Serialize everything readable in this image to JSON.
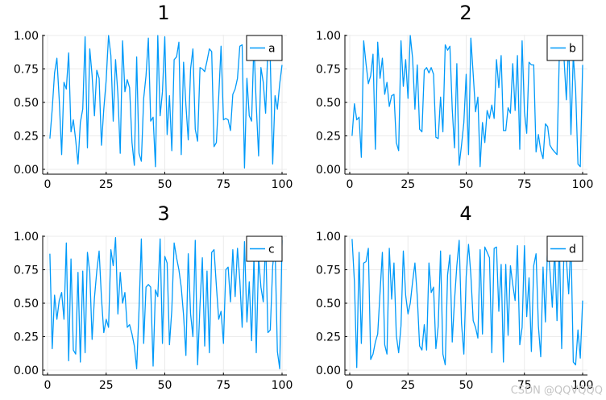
{
  "chart_data": [
    {
      "type": "line",
      "title": "1",
      "legend": "a",
      "legend_position": "top-right",
      "color": "#009af9",
      "xlim": [
        0,
        100
      ],
      "ylim": [
        0,
        1
      ],
      "xticks": [
        "0",
        "25",
        "50",
        "75",
        "100"
      ],
      "yticks": [
        "0.00",
        "0.25",
        "0.50",
        "0.75",
        "1.00"
      ],
      "x": [
        1,
        2,
        3,
        4,
        5,
        6,
        7,
        8,
        9,
        10,
        11,
        12,
        13,
        14,
        15,
        16,
        17,
        18,
        19,
        20,
        21,
        22,
        23,
        24,
        25,
        26,
        27,
        28,
        29,
        30,
        31,
        32,
        33,
        34,
        35,
        36,
        37,
        38,
        39,
        40,
        41,
        42,
        43,
        44,
        45,
        46,
        47,
        48,
        49,
        50,
        51,
        52,
        53,
        54,
        55,
        56,
        57,
        58,
        59,
        60,
        61,
        62,
        63,
        64,
        65,
        66,
        67,
        68,
        69,
        70,
        71,
        72,
        73,
        74,
        75,
        76,
        77,
        78,
        79,
        80,
        81,
        82,
        83,
        84,
        85,
        86,
        87,
        88,
        89,
        90,
        91,
        92,
        93,
        94,
        95,
        96,
        97,
        98,
        99,
        100
      ],
      "y": [
        0.23,
        0.45,
        0.72,
        0.83,
        0.52,
        0.11,
        0.65,
        0.6,
        0.87,
        0.28,
        0.37,
        0.22,
        0.04,
        0.35,
        0.45,
        0.99,
        0.16,
        0.9,
        0.7,
        0.4,
        0.74,
        0.68,
        0.18,
        0.45,
        0.67,
        1.0,
        0.85,
        0.36,
        0.82,
        0.56,
        0.12,
        0.96,
        0.58,
        0.67,
        0.61,
        0.2,
        0.03,
        0.84,
        0.12,
        0.06,
        0.53,
        0.7,
        0.98,
        0.36,
        0.39,
        0.02,
        1.0,
        0.4,
        0.58,
        0.99,
        0.26,
        0.55,
        0.14,
        0.82,
        0.84,
        0.95,
        0.11,
        0.8,
        0.48,
        0.22,
        0.75,
        0.9,
        0.3,
        0.21,
        0.76,
        0.75,
        0.73,
        0.81,
        0.9,
        0.88,
        0.17,
        0.2,
        0.54,
        0.92,
        0.37,
        0.38,
        0.37,
        0.29,
        0.56,
        0.6,
        0.68,
        0.92,
        0.93,
        0.01,
        0.68,
        0.4,
        0.36,
        0.94,
        0.48,
        0.1,
        0.76,
        0.65,
        0.42,
        0.92,
        0.82,
        0.04,
        0.55,
        0.45,
        0.64,
        0.78
      ]
    },
    {
      "type": "line",
      "title": "2",
      "legend": "b",
      "legend_position": "top-right",
      "color": "#009af9",
      "xlim": [
        0,
        100
      ],
      "ylim": [
        0,
        1
      ],
      "xticks": [
        "0",
        "25",
        "50",
        "75",
        "100"
      ],
      "yticks": [
        "0.00",
        "0.25",
        "0.50",
        "0.75",
        "1.00"
      ],
      "x": [
        1,
        2,
        3,
        4,
        5,
        6,
        7,
        8,
        9,
        10,
        11,
        12,
        13,
        14,
        15,
        16,
        17,
        18,
        19,
        20,
        21,
        22,
        23,
        24,
        25,
        26,
        27,
        28,
        29,
        30,
        31,
        32,
        33,
        34,
        35,
        36,
        37,
        38,
        39,
        40,
        41,
        42,
        43,
        44,
        45,
        46,
        47,
        48,
        49,
        50,
        51,
        52,
        53,
        54,
        55,
        56,
        57,
        58,
        59,
        60,
        61,
        62,
        63,
        64,
        65,
        66,
        67,
        68,
        69,
        70,
        71,
        72,
        73,
        74,
        75,
        76,
        77,
        78,
        79,
        80,
        81,
        82,
        83,
        84,
        85,
        86,
        87,
        88,
        89,
        90,
        91,
        92,
        93,
        94,
        95,
        96,
        97,
        98,
        99,
        100
      ],
      "y": [
        0.25,
        0.49,
        0.37,
        0.39,
        0.09,
        0.96,
        0.79,
        0.64,
        0.7,
        0.86,
        0.15,
        0.95,
        0.68,
        0.83,
        0.56,
        0.65,
        0.47,
        0.55,
        0.56,
        0.2,
        0.14,
        0.96,
        0.62,
        0.82,
        0.53,
        1.0,
        0.83,
        0.45,
        0.78,
        0.3,
        0.28,
        0.74,
        0.76,
        0.72,
        0.76,
        0.71,
        0.24,
        0.23,
        0.54,
        0.28,
        0.93,
        0.89,
        0.92,
        0.45,
        0.16,
        0.79,
        0.03,
        0.18,
        0.35,
        0.71,
        0.11,
        0.98,
        0.71,
        0.43,
        0.54,
        0.02,
        0.35,
        0.2,
        0.44,
        0.38,
        0.48,
        0.38,
        0.82,
        0.61,
        0.85,
        0.29,
        0.29,
        0.46,
        0.42,
        0.79,
        0.44,
        0.85,
        0.15,
        0.96,
        0.43,
        0.27,
        0.8,
        0.78,
        0.78,
        0.13,
        0.26,
        0.14,
        0.08,
        0.34,
        0.32,
        0.18,
        0.15,
        0.13,
        0.11,
        0.86,
        0.87,
        0.83,
        0.52,
        0.96,
        0.26,
        0.85,
        0.6,
        0.04,
        0.02,
        0.78
      ]
    },
    {
      "type": "line",
      "title": "3",
      "legend": "c",
      "legend_position": "top-right",
      "color": "#009af9",
      "xlim": [
        0,
        100
      ],
      "ylim": [
        0,
        1
      ],
      "xticks": [
        "0",
        "25",
        "50",
        "75",
        "100"
      ],
      "yticks": [
        "0.00",
        "0.25",
        "0.50",
        "0.75",
        "1.00"
      ],
      "x": [
        1,
        2,
        3,
        4,
        5,
        6,
        7,
        8,
        9,
        10,
        11,
        12,
        13,
        14,
        15,
        16,
        17,
        18,
        19,
        20,
        21,
        22,
        23,
        24,
        25,
        26,
        27,
        28,
        29,
        30,
        31,
        32,
        33,
        34,
        35,
        36,
        37,
        38,
        39,
        40,
        41,
        42,
        43,
        44,
        45,
        46,
        47,
        48,
        49,
        50,
        51,
        52,
        53,
        54,
        55,
        56,
        57,
        58,
        59,
        60,
        61,
        62,
        63,
        64,
        65,
        66,
        67,
        68,
        69,
        70,
        71,
        72,
        73,
        74,
        75,
        76,
        77,
        78,
        79,
        80,
        81,
        82,
        83,
        84,
        85,
        86,
        87,
        88,
        89,
        90,
        91,
        92,
        93,
        94,
        95,
        96,
        97,
        98,
        99,
        100
      ],
      "y": [
        0.87,
        0.16,
        0.56,
        0.38,
        0.52,
        0.58,
        0.38,
        0.95,
        0.07,
        0.83,
        0.15,
        0.12,
        0.73,
        0.06,
        0.74,
        0.13,
        0.88,
        0.73,
        0.23,
        0.54,
        0.74,
        0.89,
        0.54,
        0.28,
        0.38,
        0.32,
        0.9,
        0.78,
        0.99,
        0.42,
        0.73,
        0.5,
        0.58,
        0.32,
        0.34,
        0.27,
        0.18,
        0.01,
        0.45,
        0.98,
        0.2,
        0.62,
        0.64,
        0.62,
        0.03,
        0.6,
        0.55,
        0.98,
        0.2,
        0.85,
        0.8,
        0.19,
        0.45,
        0.95,
        0.84,
        0.75,
        0.62,
        0.41,
        0.11,
        0.87,
        0.42,
        0.25,
        0.97,
        0.04,
        0.49,
        0.84,
        0.18,
        0.74,
        0.13,
        0.88,
        0.9,
        0.63,
        0.38,
        0.44,
        0.2,
        0.75,
        0.77,
        0.51,
        0.9,
        0.55,
        0.91,
        0.67,
        0.32,
        0.96,
        0.36,
        0.66,
        0.22,
        0.84,
        0.13,
        0.84,
        0.62,
        0.51,
        0.97,
        0.28,
        0.3,
        0.78,
        0.93,
        0.14,
        0.01,
        0.97
      ]
    },
    {
      "type": "line",
      "title": "4",
      "legend": "d",
      "legend_position": "top-right",
      "color": "#009af9",
      "xlim": [
        0,
        100
      ],
      "ylim": [
        0,
        1
      ],
      "xticks": [
        "0",
        "25",
        "50",
        "75",
        "100"
      ],
      "yticks": [
        "0.00",
        "0.25",
        "0.50",
        "0.75",
        "1.00"
      ],
      "x": [
        1,
        2,
        3,
        4,
        5,
        6,
        7,
        8,
        9,
        10,
        11,
        12,
        13,
        14,
        15,
        16,
        17,
        18,
        19,
        20,
        21,
        22,
        23,
        24,
        25,
        26,
        27,
        28,
        29,
        30,
        31,
        32,
        33,
        34,
        35,
        36,
        37,
        38,
        39,
        40,
        41,
        42,
        43,
        44,
        45,
        46,
        47,
        48,
        49,
        50,
        51,
        52,
        53,
        54,
        55,
        56,
        57,
        58,
        59,
        60,
        61,
        62,
        63,
        64,
        65,
        66,
        67,
        68,
        69,
        70,
        71,
        72,
        73,
        74,
        75,
        76,
        77,
        78,
        79,
        80,
        81,
        82,
        83,
        84,
        85,
        86,
        87,
        88,
        89,
        90,
        91,
        92,
        93,
        94,
        95,
        96,
        97,
        98,
        99,
        100
      ],
      "y": [
        0.98,
        0.66,
        0.02,
        0.88,
        0.2,
        0.8,
        0.81,
        0.91,
        0.08,
        0.12,
        0.21,
        0.27,
        0.58,
        0.88,
        0.19,
        0.12,
        0.91,
        0.53,
        0.8,
        0.26,
        0.13,
        0.33,
        0.89,
        0.56,
        0.42,
        0.5,
        0.66,
        0.8,
        0.55,
        0.18,
        0.15,
        0.34,
        0.15,
        0.8,
        0.58,
        0.62,
        0.16,
        0.33,
        0.89,
        0.12,
        0.04,
        0.71,
        0.86,
        0.21,
        0.52,
        0.78,
        0.97,
        0.35,
        0.12,
        0.7,
        0.94,
        0.71,
        0.37,
        0.32,
        0.24,
        0.9,
        0.27,
        0.92,
        0.88,
        0.84,
        0.13,
        0.91,
        0.92,
        0.44,
        0.79,
        0.06,
        0.79,
        0.26,
        0.78,
        0.64,
        0.52,
        0.93,
        0.19,
        0.32,
        0.93,
        0.4,
        0.69,
        0.14,
        0.78,
        0.87,
        0.33,
        0.1,
        0.77,
        0.36,
        0.96,
        0.74,
        0.47,
        0.91,
        0.37,
        0.94,
        0.16,
        0.91,
        0.83,
        0.57,
        0.98,
        0.06,
        0.04,
        0.3,
        0.09,
        0.52
      ]
    }
  ],
  "watermark": "CSDN @QQVQQQ"
}
